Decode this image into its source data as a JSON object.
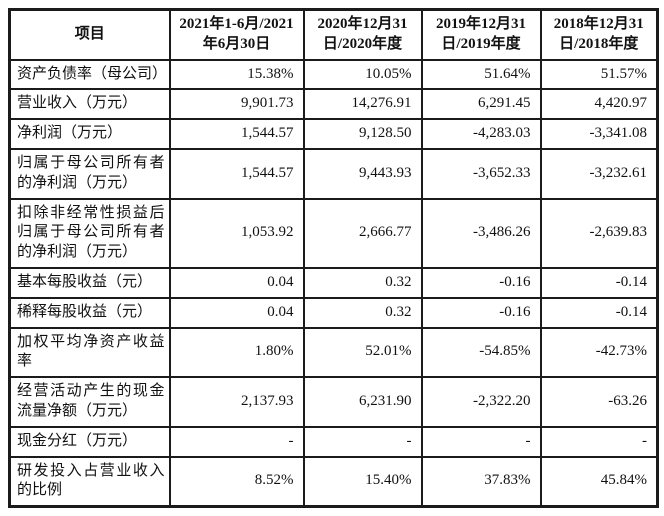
{
  "table": {
    "columns": [
      "项目",
      "2021年1-6月/2021年6月30日",
      "2020年12月31日/2020年度",
      "2019年12月31日/2019年度",
      "2018年12月31日/2018年度"
    ],
    "rows": [
      {
        "label": "资产负债率（母公司）",
        "values": [
          "15.38%",
          "10.05%",
          "51.64%",
          "51.57%"
        ]
      },
      {
        "label": "营业收入（万元）",
        "values": [
          "9,901.73",
          "14,276.91",
          "6,291.45",
          "4,420.97"
        ]
      },
      {
        "label": "净利润（万元）",
        "values": [
          "1,544.57",
          "9,128.50",
          "-4,283.03",
          "-3,341.08"
        ]
      },
      {
        "label": "归属于母公司所有者的净利润（万元）",
        "values": [
          "1,544.57",
          "9,443.93",
          "-3,652.33",
          "-3,232.61"
        ]
      },
      {
        "label": "扣除非经常性损益后归属于母公司所有者的净利润（万元）",
        "values": [
          "1,053.92",
          "2,666.77",
          "-3,486.26",
          "-2,639.83"
        ]
      },
      {
        "label": "基本每股收益（元）",
        "values": [
          "0.04",
          "0.32",
          "-0.16",
          "-0.14"
        ]
      },
      {
        "label": "稀释每股收益（元）",
        "values": [
          "0.04",
          "0.32",
          "-0.16",
          "-0.14"
        ]
      },
      {
        "label": "加权平均净资产收益率",
        "values": [
          "1.80%",
          "52.01%",
          "-54.85%",
          "-42.73%"
        ]
      },
      {
        "label": "经营活动产生的现金流量净额（万元）",
        "values": [
          "2,137.93",
          "6,231.90",
          "-2,322.20",
          "-63.26"
        ]
      },
      {
        "label": "现金分红（万元）",
        "values": [
          "-",
          "-",
          "-",
          "-"
        ]
      },
      {
        "label": "研发投入占营业收入的比例",
        "values": [
          "8.52%",
          "15.40%",
          "37.83%",
          "45.84%"
        ]
      }
    ],
    "colors": {
      "border": "#1b1b1b",
      "text": "#111111",
      "background": "#ffffff"
    }
  }
}
